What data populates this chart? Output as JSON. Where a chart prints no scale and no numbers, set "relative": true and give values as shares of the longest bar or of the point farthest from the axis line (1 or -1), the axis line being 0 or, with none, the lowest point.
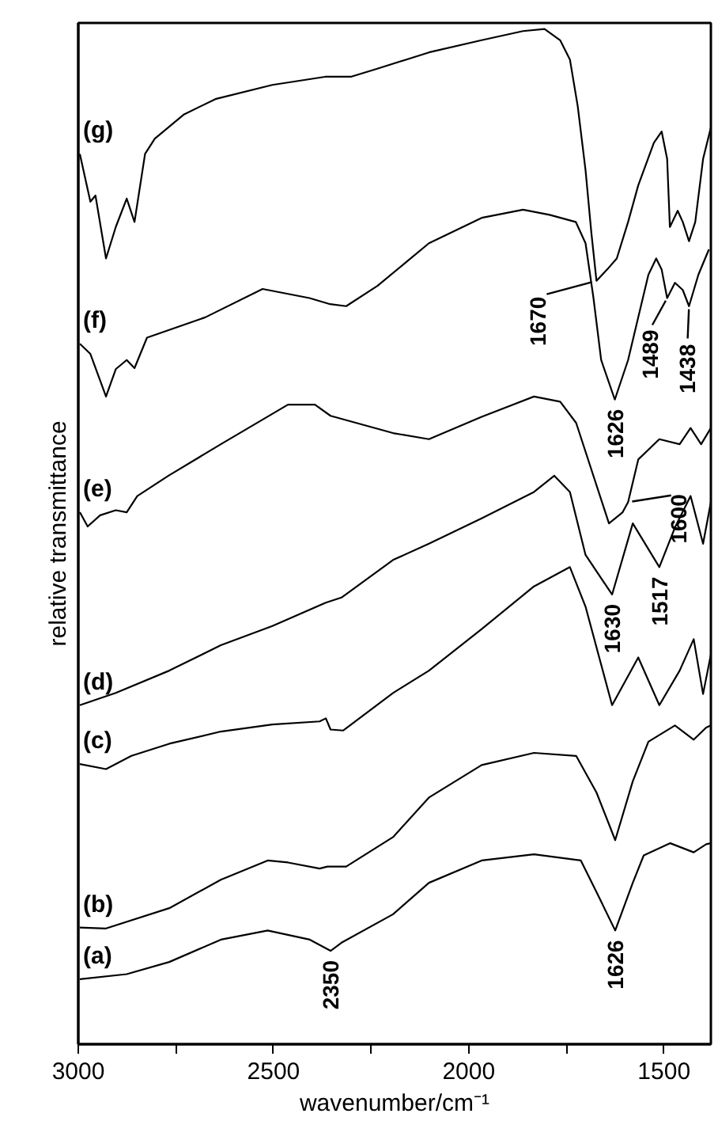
{
  "chart_data": {
    "type": "line",
    "relative": true,
    "xlabel": "wavenumber/cm⁻¹",
    "ylabel": "relative transmittance",
    "xlim": [
      3000,
      1380
    ],
    "xticks": [
      3000,
      {
        "value": 2750,
        "label": null
      },
      2500,
      {
        "value": 2250,
        "label": null
      },
      2000,
      {
        "value": 1750,
        "label": null
      },
      1500
    ],
    "grid": false,
    "line_style": "solid",
    "marker": "none",
    "series": [
      {
        "name": "(g)",
        "color": "#000000",
        "x": [
          2996,
          2969,
          2956,
          2929,
          2904,
          2876,
          2856,
          2829,
          2804,
          2729,
          2649,
          2503,
          2368,
          2302,
          2234,
          2102,
          1967,
          1861,
          1806,
          1766,
          1741,
          1721,
          1701,
          1686,
          1673,
          1646,
          1621,
          1592,
          1566,
          1526,
          1506,
          1492,
          1485,
          1465,
          1452,
          1436,
          1420,
          1400,
          1380
        ],
        "values": [
          0.877,
          0.83,
          0.836,
          0.774,
          0.805,
          0.833,
          0.81,
          0.877,
          0.892,
          0.916,
          0.931,
          0.945,
          0.953,
          0.953,
          0.961,
          0.977,
          0.989,
          0.998,
          1.0,
          0.989,
          0.97,
          0.924,
          0.861,
          0.799,
          0.752,
          0.763,
          0.774,
          0.81,
          0.846,
          0.888,
          0.899,
          0.872,
          0.805,
          0.821,
          0.81,
          0.791,
          0.81,
          0.872,
          0.903
        ]
      },
      {
        "name": "(f)",
        "color": "#000000",
        "x": [
          2996,
          2969,
          2929,
          2904,
          2876,
          2856,
          2824,
          2675,
          2528,
          2408,
          2355,
          2314,
          2234,
          2102,
          1967,
          1861,
          1793,
          1726,
          1701,
          1681,
          1661,
          1626,
          1592,
          1566,
          1540,
          1520,
          1506,
          1492,
          1472,
          1452,
          1436,
          1412,
          1385
        ],
        "values": [
          0.69,
          0.68,
          0.638,
          0.665,
          0.674,
          0.666,
          0.696,
          0.716,
          0.744,
          0.735,
          0.729,
          0.727,
          0.747,
          0.789,
          0.814,
          0.822,
          0.817,
          0.81,
          0.789,
          0.736,
          0.674,
          0.635,
          0.674,
          0.716,
          0.758,
          0.774,
          0.763,
          0.735,
          0.75,
          0.743,
          0.727,
          0.758,
          0.783
        ]
      },
      {
        "name": "(e)",
        "color": "#000000",
        "x": [
          2996,
          2976,
          2944,
          2904,
          2876,
          2849,
          2769,
          2635,
          2463,
          2394,
          2354,
          2194,
          2102,
          1967,
          1833,
          1766,
          1725,
          1641,
          1606,
          1592,
          1566,
          1512,
          1460,
          1432,
          1405,
          1380
        ],
        "values": [
          0.524,
          0.51,
          0.521,
          0.526,
          0.524,
          0.54,
          0.56,
          0.591,
          0.63,
          0.63,
          0.619,
          0.602,
          0.596,
          0.618,
          0.638,
          0.633,
          0.612,
          0.513,
          0.524,
          0.534,
          0.576,
          0.596,
          0.591,
          0.607,
          0.591,
          0.607
        ]
      },
      {
        "name": "(d)",
        "color": "#000000",
        "x": [
          2996,
          2904,
          2767,
          2635,
          2503,
          2366,
          2326,
          2194,
          2102,
          1967,
          1833,
          1781,
          1741,
          1701,
          1633,
          1580,
          1512,
          1472,
          1432,
          1400,
          1380
        ],
        "values": [
          0.334,
          0.346,
          0.368,
          0.393,
          0.412,
          0.435,
          0.44,
          0.477,
          0.493,
          0.518,
          0.544,
          0.56,
          0.544,
          0.482,
          0.443,
          0.513,
          0.47,
          0.509,
          0.54,
          0.493,
          0.534
        ]
      },
      {
        "name": "(c)",
        "color": "#000000",
        "x": [
          2996,
          2929,
          2864,
          2767,
          2635,
          2503,
          2382,
          2366,
          2354,
          2322,
          2194,
          2102,
          1967,
          1833,
          1741,
          1701,
          1633,
          1566,
          1512,
          1460,
          1424,
          1400,
          1380
        ],
        "values": [
          0.276,
          0.271,
          0.284,
          0.296,
          0.308,
          0.315,
          0.318,
          0.321,
          0.31,
          0.309,
          0.346,
          0.368,
          0.409,
          0.451,
          0.47,
          0.431,
          0.334,
          0.381,
          0.334,
          0.368,
          0.399,
          0.345,
          0.384
        ]
      },
      {
        "name": "(b)",
        "color": "#000000",
        "x": [
          2996,
          2929,
          2767,
          2635,
          2515,
          2463,
          2382,
          2362,
          2342,
          2314,
          2194,
          2102,
          1967,
          1833,
          1725,
          1673,
          1625,
          1580,
          1540,
          1472,
          1424,
          1392,
          1380
        ],
        "values": [
          0.115,
          0.114,
          0.134,
          0.162,
          0.181,
          0.179,
          0.173,
          0.175,
          0.175,
          0.175,
          0.204,
          0.243,
          0.275,
          0.287,
          0.284,
          0.248,
          0.201,
          0.259,
          0.298,
          0.314,
          0.3,
          0.312,
          0.314
        ]
      },
      {
        "name": "(a)",
        "color": "#000000",
        "x": [
          2996,
          2876,
          2767,
          2635,
          2515,
          2407,
          2354,
          2326,
          2194,
          2102,
          1967,
          1833,
          1713,
          1673,
          1625,
          1580,
          1552,
          1484,
          1424,
          1392,
          1380
        ],
        "values": [
          0.064,
          0.069,
          0.081,
          0.103,
          0.112,
          0.103,
          0.092,
          0.1,
          0.128,
          0.159,
          0.181,
          0.187,
          0.181,
          0.15,
          0.112,
          0.159,
          0.186,
          0.198,
          0.189,
          0.197,
          0.198
        ]
      }
    ],
    "annotations": [
      {
        "text": "1670",
        "x": 1673,
        "y": 0.752
      },
      {
        "text": "1626",
        "x": 1626,
        "y": 0.635
      },
      {
        "text": "1489",
        "x": 1492,
        "y": 0.735
      },
      {
        "text": "1438",
        "x": 1436,
        "y": 0.727
      },
      {
        "text": "1600",
        "x": 1592,
        "y": 0.534
      },
      {
        "text": "1630",
        "x": 1633,
        "y": 0.443
      },
      {
        "text": "1517",
        "x": 1512,
        "y": 0.47
      },
      {
        "text": "1626",
        "x": 1625,
        "y": 0.112
      },
      {
        "text": "2350",
        "x": 2354,
        "y": 0.092
      }
    ]
  }
}
